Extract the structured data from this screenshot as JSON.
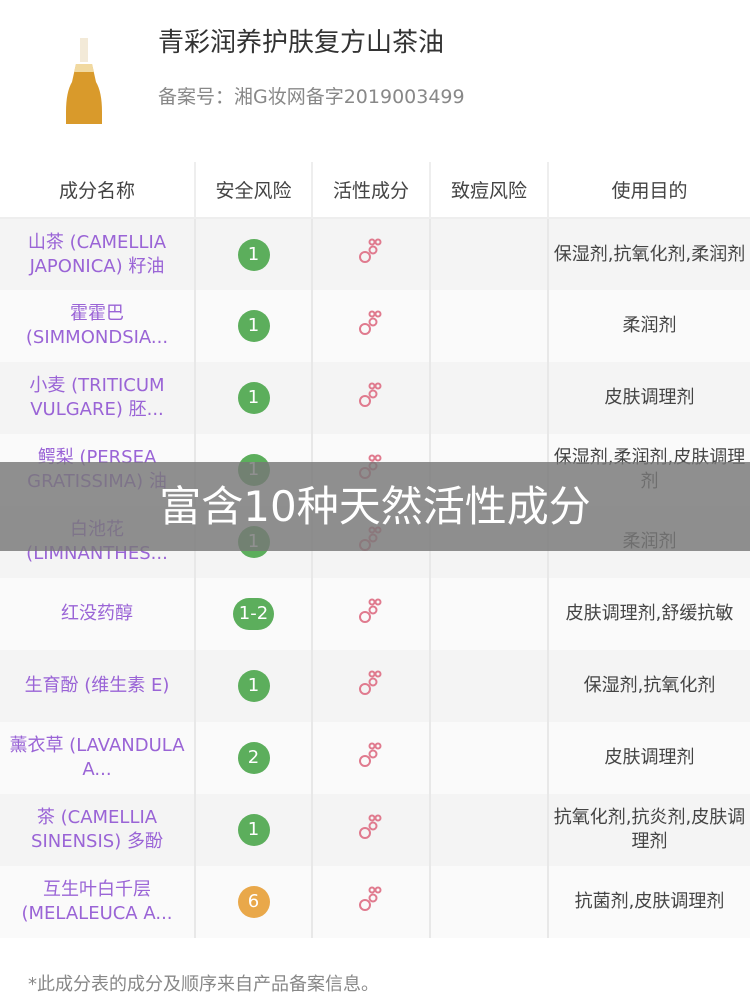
{
  "product": {
    "title": "青彩润养护肤复方山茶油",
    "registration": "备案号：湘G妆网备字2019003499"
  },
  "table": {
    "headers": [
      "成分名称",
      "安全风险",
      "活性成分",
      "致痘风险",
      "使用目的"
    ],
    "rows": [
      {
        "name": "山茶 (CAMELLIA JAPONICA) 籽油",
        "safety": "1",
        "safety_color": "#5cae5c",
        "active": true,
        "acne": "",
        "purpose": "保湿剂,抗氧化剂,柔润剂"
      },
      {
        "name": "霍霍巴 (SIMMONDSIA...",
        "safety": "1",
        "safety_color": "#5cae5c",
        "active": true,
        "acne": "",
        "purpose": "柔润剂"
      },
      {
        "name": "小麦 (TRITICUM VULGARE) 胚...",
        "safety": "1",
        "safety_color": "#5cae5c",
        "active": true,
        "acne": "",
        "purpose": "皮肤调理剂"
      },
      {
        "name": "鳄梨 (PERSEA GRATISSIMA) 油",
        "safety": "1",
        "safety_color": "#5cae5c",
        "active": true,
        "acne": "",
        "purpose": "保湿剂,柔润剂,皮肤调理剂"
      },
      {
        "name": "白池花 (LIMNANTHES...",
        "safety": "1",
        "safety_color": "#5cae5c",
        "active": true,
        "acne": "",
        "purpose": "柔润剂"
      },
      {
        "name": "红没药醇",
        "safety": "1-2",
        "safety_color": "#5cae5c",
        "active": true,
        "acne": "",
        "purpose": "皮肤调理剂,舒缓抗敏"
      },
      {
        "name": "生育酚 (维生素 E)",
        "safety": "1",
        "safety_color": "#5cae5c",
        "active": true,
        "acne": "",
        "purpose": "保湿剂,抗氧化剂"
      },
      {
        "name": "薰衣草 (LAVANDULA A...",
        "safety": "2",
        "safety_color": "#5cae5c",
        "active": true,
        "acne": "",
        "purpose": "皮肤调理剂"
      },
      {
        "name": "茶 (CAMELLIA SINENSIS) 多酚",
        "safety": "1",
        "safety_color": "#5cae5c",
        "active": true,
        "acne": "",
        "purpose": "抗氧化剂,抗炎剂,皮肤调理剂"
      },
      {
        "name": "互生叶白千层 (MELALEUCA A...",
        "safety": "6",
        "safety_color": "#e9a84a",
        "active": true,
        "acne": "",
        "purpose": "抗菌剂,皮肤调理剂"
      }
    ]
  },
  "banner": "富含10种天然活性成分",
  "footer": "*此成分表的成分及顺序来自产品备案信息。",
  "icons": {
    "active": "molecule-icon"
  },
  "colors": {
    "name": "#9a64d6",
    "active_icon": "#e07a8e"
  }
}
